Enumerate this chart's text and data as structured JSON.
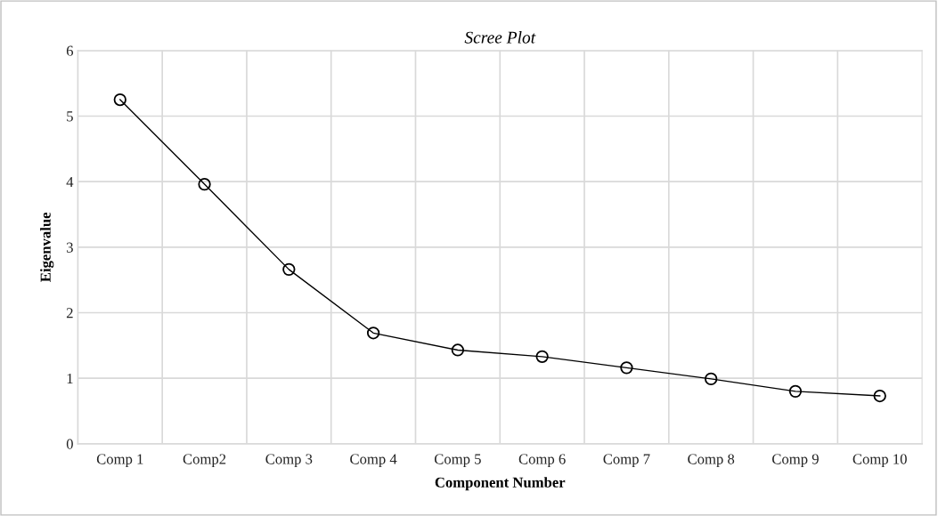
{
  "chart_data": {
    "type": "line",
    "title": "Scree Plot",
    "xlabel": "Component Number",
    "ylabel": "Eigenvalue",
    "categories": [
      "Comp 1",
      "Comp2",
      "Comp 3",
      "Comp 4",
      "Comp 5",
      "Comp 6",
      "Comp 7",
      "Comp 8",
      "Comp 9",
      "Comp 10"
    ],
    "series": [
      {
        "color": "#000000",
        "values": [
          5.25,
          3.96,
          2.66,
          1.69,
          1.43,
          1.33,
          1.16,
          0.99,
          0.8,
          0.73
        ]
      }
    ],
    "ylim": [
      0,
      6
    ],
    "yticks": [
      0,
      1,
      2,
      3,
      4,
      5,
      6
    ],
    "grid": true,
    "marker": "circle",
    "line_style": "solid"
  }
}
